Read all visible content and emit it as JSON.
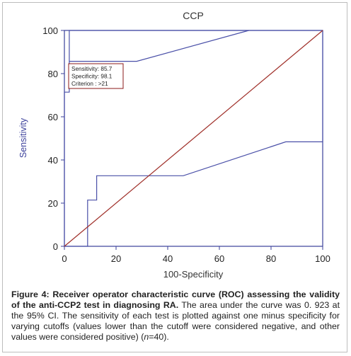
{
  "chart_data": {
    "type": "line",
    "title": "CCP",
    "xlabel": "100-Specificity",
    "ylabel": "Sensitivity",
    "xlim": [
      0,
      100
    ],
    "ylim": [
      0,
      100
    ],
    "xticks": [
      "0",
      "20",
      "40",
      "60",
      "80",
      "100"
    ],
    "yticks": [
      "0",
      "20",
      "40",
      "60",
      "80",
      "100"
    ],
    "grid": false,
    "series": [
      {
        "color": "#4a50a8",
        "points": [
          [
            0,
            0
          ],
          [
            0,
            50
          ],
          [
            0,
            71.4
          ],
          [
            1.9,
            71.4
          ],
          [
            1.9,
            85.7
          ],
          [
            1.9,
            100
          ],
          [
            100,
            100
          ]
        ]
      },
      {
        "color": "#4a50a8",
        "points": [
          [
            0,
            0
          ],
          [
            9,
            0
          ],
          [
            9,
            21.4
          ],
          [
            12.5,
            21.4
          ],
          [
            12.5,
            32.7
          ],
          [
            46,
            32.7
          ],
          [
            85.7,
            48.4
          ],
          [
            100,
            48.4
          ],
          [
            100,
            100
          ]
        ]
      },
      {
        "color": "#4a50a8",
        "points": [
          [
            1.9,
            85.7
          ],
          [
            28,
            85.7
          ],
          [
            71.4,
            100
          ]
        ]
      },
      {
        "color": "#a0302a",
        "points": [
          [
            0,
            0
          ],
          [
            100,
            100
          ]
        ]
      }
    ],
    "annotation": {
      "lines": [
        "Sensitivity: 85.7",
        "Specificity: 98.1",
        "Criterion : >21"
      ],
      "border_color": "#8b1a1a"
    },
    "axis_color": "#3a3f9a"
  },
  "caption": {
    "label": "Figure 4:",
    "bold_text": "Receiver operator characteristic curve (ROC) assessing the validity of the anti-CCP2 test in diagnosing RA.",
    "text_before_n": "The area under the curve was 0. 923 at the 95% CI. The sensitivity of each test is plotted against one minus specificity for varying cutoffs (values lower than the cutoff were considered negative, and other values were considered positive) (",
    "n_symbol": "n",
    "text_after_n": "=40)."
  }
}
